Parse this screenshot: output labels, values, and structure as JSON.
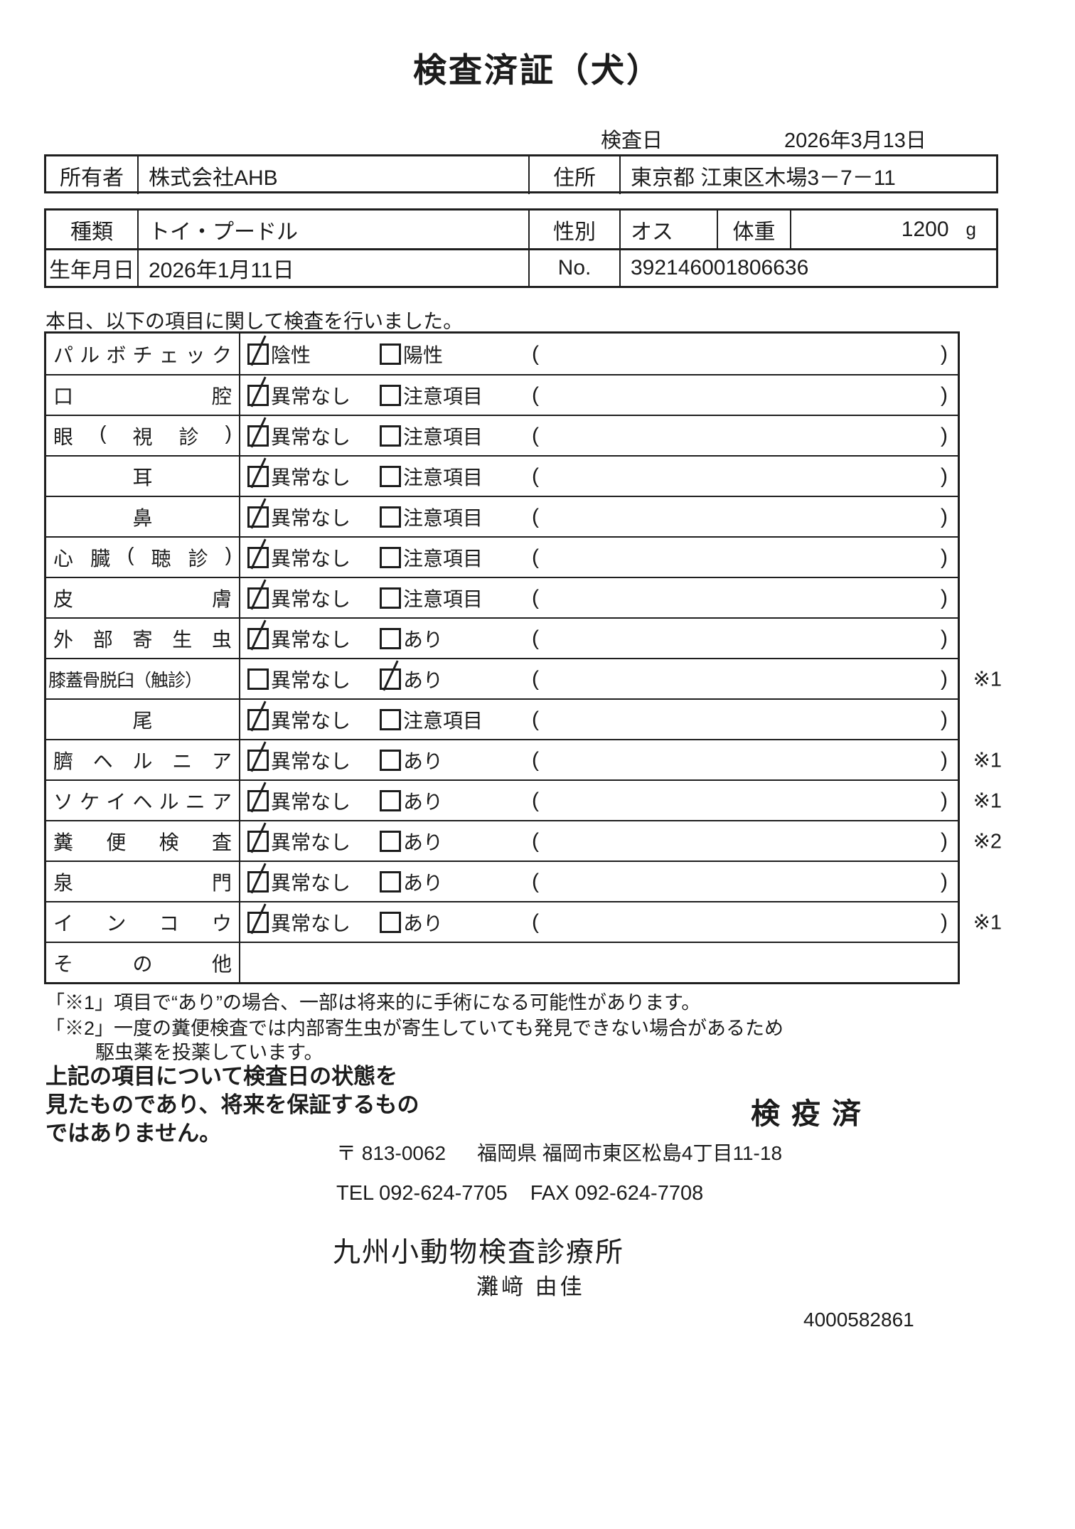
{
  "title": "検査済証（犬）",
  "header": {
    "inspection_date_label": "検査日",
    "inspection_date": "2026年3月13日"
  },
  "owner_table": {
    "owner_label": "所有者",
    "owner": "株式会社AHB",
    "address_label": "住所",
    "address": "東京都 江東区木場3－7－11"
  },
  "pet_table": {
    "breed_label": "種類",
    "breed": "トイ・プードル",
    "sex_label": "性別",
    "sex": "オス",
    "weight_label": "体重",
    "weight": "1200",
    "weight_unit": "g",
    "birth_label": "生年月日",
    "birth": "2026年1月11日",
    "no_label": "No.",
    "no": "392146001806636"
  },
  "intro": "本日、以下の項目に関して検査を行いました。",
  "checkbox_table": {
    "rows": [
      {
        "item": "パルボチェック",
        "layout": "justify",
        "opt1": {
          "label": "陰性",
          "checked": true
        },
        "opt2": {
          "label": "陽性",
          "checked": false
        },
        "parens": true,
        "marker": ""
      },
      {
        "item": "口腔",
        "layout": "justify",
        "opt1": {
          "label": "異常なし",
          "checked": true
        },
        "opt2": {
          "label": "注意項目",
          "checked": false
        },
        "parens": true,
        "marker": ""
      },
      {
        "item": "眼(視診)",
        "layout": "justify",
        "opt1": {
          "label": "異常なし",
          "checked": true
        },
        "opt2": {
          "label": "注意項目",
          "checked": false
        },
        "parens": true,
        "marker": ""
      },
      {
        "item": "耳",
        "layout": "center",
        "opt1": {
          "label": "異常なし",
          "checked": true
        },
        "opt2": {
          "label": "注意項目",
          "checked": false
        },
        "parens": true,
        "marker": ""
      },
      {
        "item": "鼻",
        "layout": "center",
        "opt1": {
          "label": "異常なし",
          "checked": true
        },
        "opt2": {
          "label": "注意項目",
          "checked": false
        },
        "parens": true,
        "marker": ""
      },
      {
        "item": "心臓(聴診)",
        "layout": "justify",
        "opt1": {
          "label": "異常なし",
          "checked": true
        },
        "opt2": {
          "label": "注意項目",
          "checked": false
        },
        "parens": true,
        "marker": ""
      },
      {
        "item": "皮膚",
        "layout": "justify",
        "opt1": {
          "label": "異常なし",
          "checked": true
        },
        "opt2": {
          "label": "注意項目",
          "checked": false
        },
        "parens": true,
        "marker": ""
      },
      {
        "item": "外部寄生虫",
        "layout": "justify",
        "opt1": {
          "label": "異常なし",
          "checked": true
        },
        "opt2": {
          "label": "あり",
          "checked": false
        },
        "parens": true,
        "marker": ""
      },
      {
        "item": "膝蓋骨脱臼（触診）",
        "layout": "plain",
        "opt1": {
          "label": "異常なし",
          "checked": false
        },
        "opt2": {
          "label": "あり",
          "checked": true
        },
        "parens": true,
        "marker": "※1"
      },
      {
        "item": "尾",
        "layout": "center",
        "opt1": {
          "label": "異常なし",
          "checked": true
        },
        "opt2": {
          "label": "注意項目",
          "checked": false
        },
        "parens": true,
        "marker": ""
      },
      {
        "item": "臍ヘルニア",
        "layout": "justify",
        "opt1": {
          "label": "異常なし",
          "checked": true
        },
        "opt2": {
          "label": "あり",
          "checked": false
        },
        "parens": true,
        "marker": "※1"
      },
      {
        "item": "ソケイヘルニア",
        "layout": "justify",
        "opt1": {
          "label": "異常なし",
          "checked": true
        },
        "opt2": {
          "label": "あり",
          "checked": false
        },
        "parens": true,
        "marker": "※1"
      },
      {
        "item": "糞便検査",
        "layout": "justify",
        "opt1": {
          "label": "異常なし",
          "checked": true
        },
        "opt2": {
          "label": "あり",
          "checked": false
        },
        "parens": true,
        "marker": "※2"
      },
      {
        "item": "泉門",
        "layout": "justify",
        "opt1": {
          "label": "異常なし",
          "checked": true
        },
        "opt2": {
          "label": "あり",
          "checked": false
        },
        "parens": true,
        "marker": ""
      },
      {
        "item": "インコウ",
        "layout": "justify",
        "opt1": {
          "label": "異常なし",
          "checked": true
        },
        "opt2": {
          "label": "あり",
          "checked": false
        },
        "parens": true,
        "marker": "※1"
      },
      {
        "item": "その他",
        "layout": "justify",
        "opt1": null,
        "opt2": null,
        "parens": false,
        "marker": ""
      }
    ]
  },
  "notes": {
    "note1": "「※1」項目で“あり”の場合、一部は将来的に手術になる可能性があります。",
    "note2": "「※2」一度の糞便検査では内部寄生虫が寄生していても発見できない場合があるため",
    "note2b": "駆虫薬を投薬しています。"
  },
  "disclaimer": {
    "line1": "上記の項目について検査日の状態を",
    "line2": "見たものであり、将来を保証するもの",
    "line3": "ではありません。"
  },
  "quarantine_stamp": "検疫済",
  "footer": {
    "postal": "〒 813-0062",
    "address": "福岡県 福岡市東区松島4丁目11-18",
    "tel": "TEL 092-624-7705",
    "fax": "FAX 092-624-7708",
    "clinic": "九州小動物検査診療所",
    "examiner": "灘﨑 由佳",
    "serial": "4000582861"
  }
}
